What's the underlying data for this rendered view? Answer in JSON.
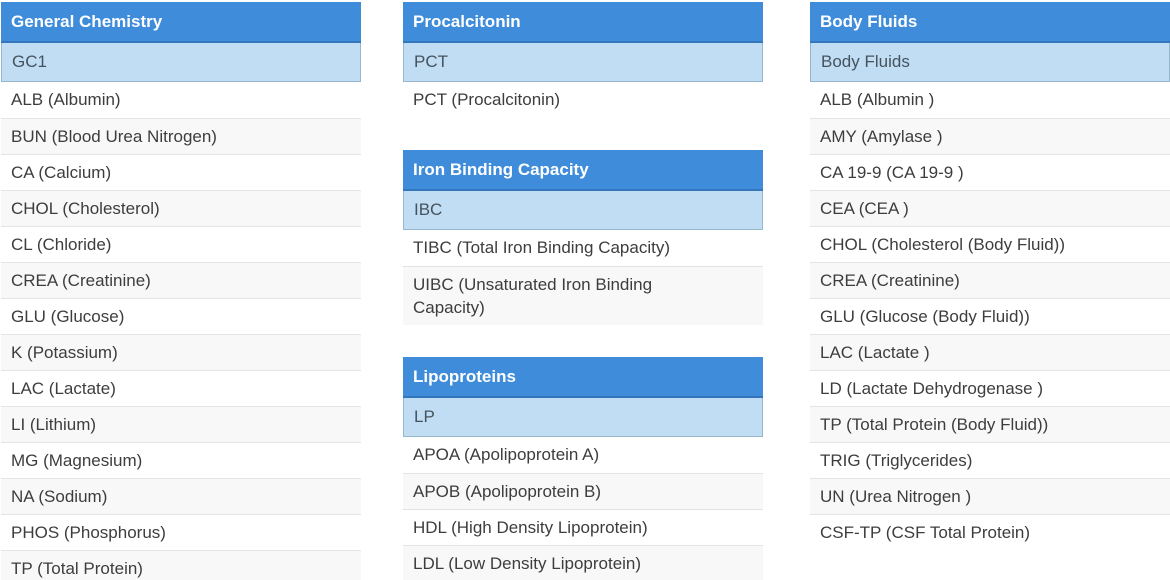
{
  "palette": {
    "header_bg": "#3e8cda",
    "header_border": "#3376bb",
    "group_row_bg": "#c0ddf4",
    "group_row_border": "#96b7cb",
    "stripe_bg": "#f8f8f8",
    "row_divider": "#e4e4e4",
    "item_text": "#3d3d3d",
    "group_text": "#46535c",
    "header_text": "#ffffff"
  },
  "columns": [
    {
      "name": "general-chemistry",
      "sections": [
        {
          "title": "General Chemistry",
          "group": "GC1",
          "items": [
            "ALB (Albumin)",
            "BUN (Blood Urea Nitrogen)",
            "CA (Calcium)",
            "CHOL (Cholesterol)",
            "CL (Chloride)",
            "CREA (Creatinine)",
            "GLU (Glucose)",
            "K (Potassium)",
            "LAC (Lactate)",
            "LI (Lithium)",
            "MG (Magnesium)",
            "NA (Sodium)",
            "PHOS (Phosphorus)",
            "TP (Total Protein)"
          ]
        }
      ]
    },
    {
      "name": "special-chemistry",
      "sections": [
        {
          "title": "Procalcitonin",
          "group": "PCT",
          "items": [
            "PCT (Procalcitonin)"
          ]
        },
        {
          "title": "Iron Binding Capacity",
          "group": "IBC",
          "items": [
            "TIBC (Total Iron Binding Capacity)",
            "UIBC (Unsaturated Iron Binding Capacity)"
          ]
        },
        {
          "title": "Lipoproteins",
          "group": "LP",
          "items": [
            "APOA (Apolipoprotein A)",
            "APOB (Apolipoprotein B)",
            "HDL (High Density Lipoprotein)",
            "LDL (Low Density Lipoprotein)"
          ]
        }
      ]
    },
    {
      "name": "body-fluids",
      "sections": [
        {
          "title": "Body Fluids",
          "group": "Body Fluids",
          "items": [
            "ALB (Albumin )",
            "AMY (Amylase )",
            "CA 19-9 (CA 19-9 )",
            "CEA (CEA )",
            "CHOL (Cholesterol (Body Fluid))",
            "CREA (Creatinine)",
            "GLU (Glucose (Body Fluid))",
            "LAC (Lactate )",
            "LD (Lactate Dehydrogenase )",
            "TP (Total Protein (Body Fluid))",
            "TRIG (Triglycerides)",
            "UN (Urea Nitrogen )",
            "CSF-TP (CSF Total Protein)"
          ]
        }
      ]
    }
  ]
}
